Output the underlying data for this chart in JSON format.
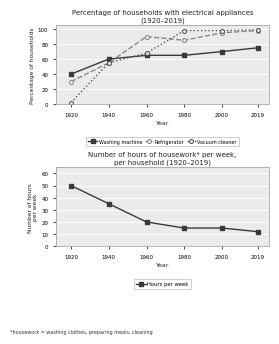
{
  "years": [
    1920,
    1940,
    1960,
    1980,
    2000,
    2019
  ],
  "washing_machine": [
    40,
    60,
    65,
    65,
    70,
    75
  ],
  "refrigerator": [
    30,
    55,
    90,
    85,
    95,
    98
  ],
  "vacuum_cleaner": [
    2,
    55,
    68,
    98,
    98,
    99
  ],
  "hours_per_week": [
    50,
    35,
    20,
    15,
    15,
    12
  ],
  "chart1_title": "Percentage of households with electrical appliances\n(1920–2019)",
  "chart2_title": "Number of hours of housework* per week,\nper household (1920–2019)",
  "ylabel1": "Percentage of households",
  "ylabel2": "Number of hours\nper week",
  "xlabel": "Year",
  "footnote": "*housework = washing clothes, preparing meals, cleaning",
  "ylim1": [
    0,
    105
  ],
  "ylim2": [
    0,
    65
  ],
  "yticks1": [
    0,
    20,
    40,
    60,
    80,
    100
  ],
  "yticks2": [
    0,
    10,
    20,
    30,
    40,
    50,
    60
  ],
  "color_wm": "#3a3a3a",
  "color_fridge": "#888888",
  "color_vc": "#555555",
  "bg_color": "#ebebeb"
}
